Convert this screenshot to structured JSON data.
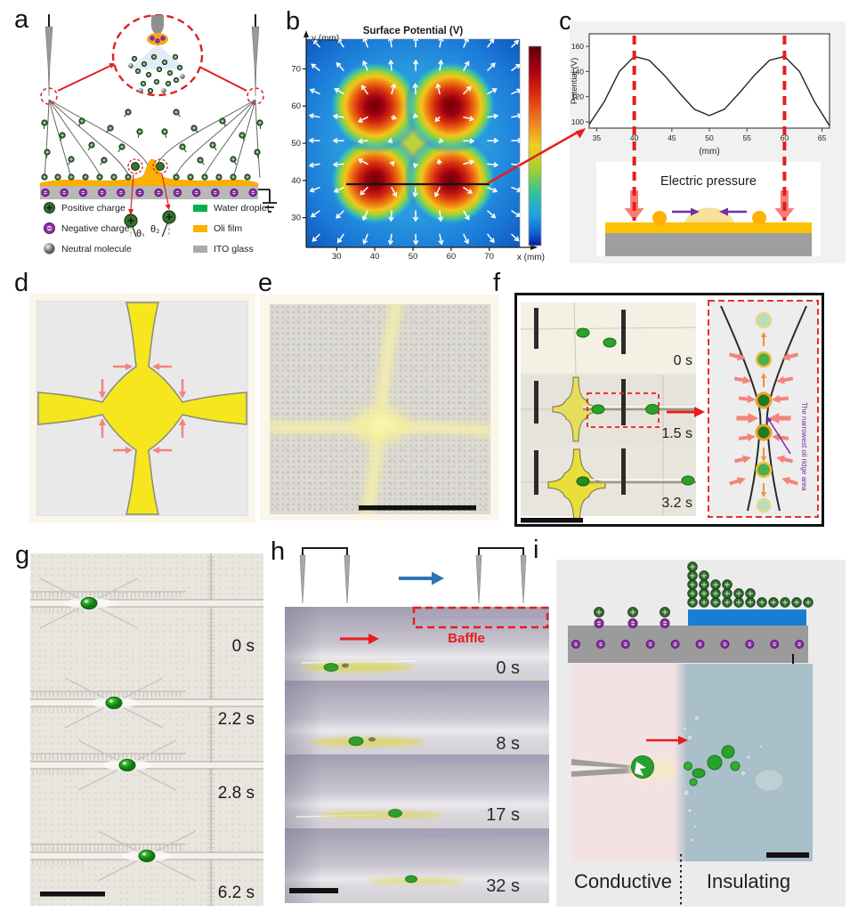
{
  "panels": {
    "a": "a",
    "b": "b",
    "c": "c",
    "d": "d",
    "e": "e",
    "f": "f",
    "g": "g",
    "h": "h",
    "i": "i"
  },
  "panel_a": {
    "legend": [
      {
        "label": "Positive charge"
      },
      {
        "label": "Negative charge"
      },
      {
        "label": "Neutral molecule"
      },
      {
        "label": "Water droplet"
      },
      {
        "label": "Oli film"
      },
      {
        "label": "ITO glass"
      }
    ],
    "theta1": "θ₁",
    "theta2": "θ₂",
    "force1": "F₁",
    "force2": "F₂"
  },
  "panel_b": {
    "title": "Surface Potential (V)",
    "xlabel": "x (mm)",
    "ylabel": "y (mm)",
    "xticks": [
      30,
      40,
      50,
      60,
      70
    ],
    "yticks_top_to_bottom": [
      70,
      60,
      50,
      40,
      30
    ]
  },
  "panel_c": {
    "ylabel": "Potential (V)",
    "xlabel_unit": "(mm)",
    "yticks_top_to_bottom": [
      160,
      140,
      120,
      100
    ],
    "xticks": [
      35,
      40,
      45,
      50,
      55,
      60,
      65
    ],
    "pressure_label": "Electric pressure"
  },
  "panel_f": {
    "times": [
      "0 s",
      "1.5 s",
      "3.2 s"
    ],
    "inset_note": "The narrowest oil ridge area"
  },
  "panel_g": {
    "times": [
      "0 s",
      "2.2 s",
      "2.8 s",
      "6.2 s"
    ]
  },
  "panel_h": {
    "baffle_label": "Baffle",
    "times": [
      "0 s",
      "8 s",
      "17 s",
      "32 s"
    ]
  },
  "panel_i": {
    "bottom_labels": {
      "left": "Conductive",
      "right": "Insulating"
    }
  },
  "colors": {
    "highlight_red": "#e81c1c",
    "arrow_pink": "#f4837d",
    "arrow_purple": "#7030a0",
    "oil_yellow": "#ffaf00",
    "water_green": "#00b050",
    "ito_gray": "#ababab",
    "insulator_blue": "#1a7dd4",
    "hot_red": "#6b0005",
    "cold_blue": "#0f55b8"
  },
  "chart_data": [
    {
      "panel": "b",
      "type": "heatmap",
      "title": "Surface Potential (V)",
      "xlabel": "x (mm)",
      "ylabel": "y (mm)",
      "x_range_mm": [
        22,
        78
      ],
      "y_range_mm": [
        22,
        78
      ],
      "xticks": [
        30,
        40,
        50,
        60,
        70
      ],
      "yticks": [
        30,
        40,
        50,
        60,
        70
      ],
      "hotspots_mm": [
        [
          40,
          40
        ],
        [
          60,
          40
        ],
        [
          40,
          60
        ],
        [
          60,
          60
        ]
      ],
      "peak_potential_V": 155,
      "background_potential_V": 0,
      "quiver": "white arrows pointing outward from the four potential maxima",
      "sample_line": {
        "y_mm": 39,
        "x_from_mm": 32.5,
        "x_to_mm": 70.5
      },
      "colorbar": "jet, dark red (high) at top to dark blue (low) at bottom"
    },
    {
      "panel": "c",
      "type": "line",
      "xlabel": "(mm)",
      "ylabel": "Potential (V)",
      "xlim": [
        34,
        66
      ],
      "ylim": [
        95,
        168
      ],
      "xticks": [
        35,
        40,
        45,
        50,
        55,
        60,
        65
      ],
      "yticks": [
        100,
        120,
        140,
        160
      ],
      "x": [
        34,
        36,
        38,
        40,
        42,
        44,
        46,
        48,
        50,
        52,
        54,
        56,
        58,
        60,
        62,
        64,
        66
      ],
      "y": [
        98,
        116,
        140,
        152,
        149,
        137,
        123,
        110,
        105,
        110,
        123,
        137,
        149,
        152,
        140,
        116,
        97
      ],
      "annotations": "red dashed vertical lines at x=40 and x=60 mm aligned with the two ~152 V maxima; local minimum ~105 V at x=50 mm"
    }
  ]
}
